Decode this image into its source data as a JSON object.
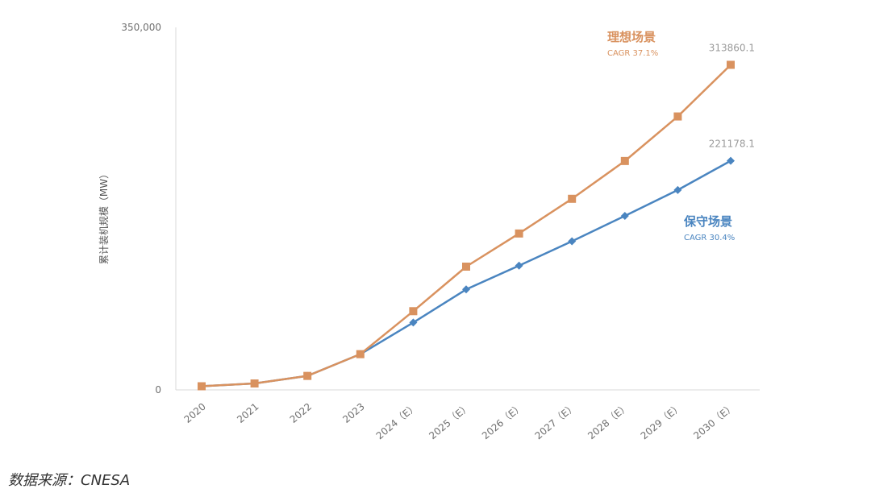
{
  "chart_data": {
    "type": "line",
    "title": "",
    "ylabel": "累计装机规模（MW）",
    "xlabel": "",
    "ylim": [
      0,
      350000
    ],
    "y_ticks": [
      "0",
      "350,000"
    ],
    "categories": [
      "2020",
      "2021",
      "2022",
      "2023",
      "2024（E）",
      "2025（E）",
      "2026（E）",
      "2027（E）",
      "2028（E）",
      "2029（E）",
      "2030（E）"
    ],
    "series": [
      {
        "name": "理想场景",
        "cagr": "CAGR 37.1%",
        "color": "#D9925F",
        "marker": "square",
        "end_label": "313860.1",
        "values": [
          3500,
          6200,
          13500,
          34500,
          76000,
          119000,
          151000,
          184500,
          221000,
          264000,
          313860.1
        ]
      },
      {
        "name": "保守场景",
        "cagr": "CAGR 30.4%",
        "color": "#4A85C0",
        "marker": "diamond",
        "end_label": "221178.1",
        "values": [
          3500,
          6200,
          13500,
          34500,
          65000,
          97000,
          120000,
          143500,
          168000,
          193000,
          221178.1
        ]
      }
    ],
    "grid": false,
    "legend": "inline"
  },
  "source": "数据来源：CNESA"
}
